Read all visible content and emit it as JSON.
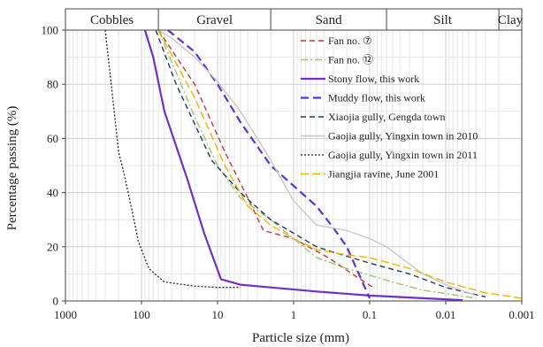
{
  "chart_data": {
    "type": "line",
    "xlabel": "Particle size (mm)",
    "ylabel": "Percentage passing (%)",
    "x_scale": "log",
    "x_reversed": true,
    "xlim": [
      1000,
      0.001
    ],
    "ylim": [
      0,
      100
    ],
    "x_ticks": [
      {
        "value": 1000,
        "label": "1000"
      },
      {
        "value": 100,
        "label": "100"
      },
      {
        "value": 10,
        "label": "10"
      },
      {
        "value": 1,
        "label": "1"
      },
      {
        "value": 0.1,
        "label": "0.1"
      },
      {
        "value": 0.01,
        "label": "0.01"
      },
      {
        "value": 0.001,
        "label": "0.001"
      }
    ],
    "y_ticks": [
      {
        "value": 0,
        "label": "0"
      },
      {
        "value": 20,
        "label": "20"
      },
      {
        "value": 40,
        "label": "40"
      },
      {
        "value": 60,
        "label": "60"
      },
      {
        "value": 80,
        "label": "80"
      },
      {
        "value": 100,
        "label": "100"
      }
    ],
    "grid": true,
    "legend_position": "top-right",
    "size_classes": [
      {
        "label": "Cobbles",
        "from": 3000,
        "to": 60
      },
      {
        "label": "Gravel",
        "from": 60,
        "to": 2
      },
      {
        "label": "Sand",
        "from": 2,
        "to": 0.06
      },
      {
        "label": "Silt",
        "from": 0.06,
        "to": 0.002
      },
      {
        "label": "Clay",
        "from": 0.002,
        "to": 0.001
      }
    ],
    "series": [
      {
        "name": "Fan no. ⑦",
        "color": "#c0393b",
        "dash": "6,4",
        "width": 1.4,
        "points": [
          [
            60,
            100
          ],
          [
            20,
            80
          ],
          [
            8,
            55
          ],
          [
            4,
            38
          ],
          [
            2.5,
            26
          ],
          [
            1,
            23
          ],
          [
            0.35,
            16
          ],
          [
            0.15,
            9
          ],
          [
            0.09,
            5
          ]
        ]
      },
      {
        "name": "Fan no. ⑫",
        "color": "#9ac76a",
        "dash": "8,3,2,3",
        "width": 1.4,
        "points": [
          [
            60,
            100
          ],
          [
            20,
            68
          ],
          [
            10,
            50
          ],
          [
            5,
            38
          ],
          [
            2,
            30
          ],
          [
            1,
            23
          ],
          [
            0.5,
            16
          ],
          [
            0.2,
            12
          ],
          [
            0.05,
            7
          ],
          [
            0.02,
            4
          ],
          [
            0.004,
            1
          ]
        ]
      },
      {
        "name": "Stony flow, this work",
        "color": "#7030c8",
        "dash": "",
        "width": 2.2,
        "points": [
          [
            90,
            100
          ],
          [
            70,
            90
          ],
          [
            50,
            70
          ],
          [
            25,
            45
          ],
          [
            15,
            25
          ],
          [
            9,
            8
          ],
          [
            5,
            6
          ],
          [
            2,
            5
          ],
          [
            0.5,
            3.5
          ],
          [
            0.1,
            2
          ],
          [
            0.02,
            1
          ],
          [
            0.006,
            0.3
          ]
        ]
      },
      {
        "name": "Muddy flow, this work",
        "color": "#5e33d6",
        "dash": "9,5",
        "width": 2.2,
        "points": [
          [
            45,
            100
          ],
          [
            20,
            92
          ],
          [
            10,
            80
          ],
          [
            5,
            66
          ],
          [
            2,
            50
          ],
          [
            0.5,
            35
          ],
          [
            0.3,
            27
          ],
          [
            0.2,
            20
          ],
          [
            0.1,
            1
          ]
        ]
      },
      {
        "name": "Xiaojia gully, Gengda town",
        "color": "#1f3a6e",
        "dash": "6,4",
        "width": 1.4,
        "points": [
          [
            65,
            100
          ],
          [
            35,
            80
          ],
          [
            12,
            52
          ],
          [
            5,
            40
          ],
          [
            2,
            30
          ],
          [
            1,
            25
          ],
          [
            0.5,
            20
          ],
          [
            0.3,
            18
          ],
          [
            0.1,
            14
          ],
          [
            0.03,
            10
          ],
          [
            0.01,
            5
          ],
          [
            0.003,
            1.5
          ]
        ]
      },
      {
        "name": "Gaojia gully, Yingxin town in 2010",
        "color": "#c8c8c8",
        "dash": "",
        "width": 1.4,
        "points": [
          [
            60,
            100
          ],
          [
            40,
            97
          ],
          [
            20,
            90
          ],
          [
            10,
            81
          ],
          [
            5,
            70
          ],
          [
            2,
            52
          ],
          [
            1,
            37
          ],
          [
            0.5,
            28
          ],
          [
            0.2,
            26
          ],
          [
            0.1,
            23
          ],
          [
            0.06,
            20
          ],
          [
            0.02,
            10
          ],
          [
            0.01,
            6
          ],
          [
            0.004,
            2
          ]
        ]
      },
      {
        "name": "Gaojia gully, Yingxin town in 2011",
        "color": "#222222",
        "dash": "2,2",
        "width": 1.3,
        "points": [
          [
            300,
            100
          ],
          [
            250,
            80
          ],
          [
            200,
            55
          ],
          [
            170,
            47
          ],
          [
            150,
            40
          ],
          [
            130,
            32
          ],
          [
            110,
            22
          ],
          [
            80,
            12
          ],
          [
            50,
            7
          ],
          [
            20,
            5.5
          ],
          [
            10,
            5
          ],
          [
            5,
            5
          ]
        ]
      },
      {
        "name": "Jiangjia ravine, June 2001",
        "color": "#f0b400",
        "dash": "9,4",
        "width": 1.4,
        "points": [
          [
            60,
            100
          ],
          [
            20,
            75
          ],
          [
            8,
            50
          ],
          [
            4,
            35
          ],
          [
            2,
            28
          ],
          [
            1,
            23
          ],
          [
            0.5,
            19
          ],
          [
            0.2,
            17
          ],
          [
            0.1,
            16
          ],
          [
            0.03,
            12
          ],
          [
            0.01,
            7
          ],
          [
            0.003,
            3
          ],
          [
            0.001,
            1
          ]
        ]
      }
    ]
  }
}
